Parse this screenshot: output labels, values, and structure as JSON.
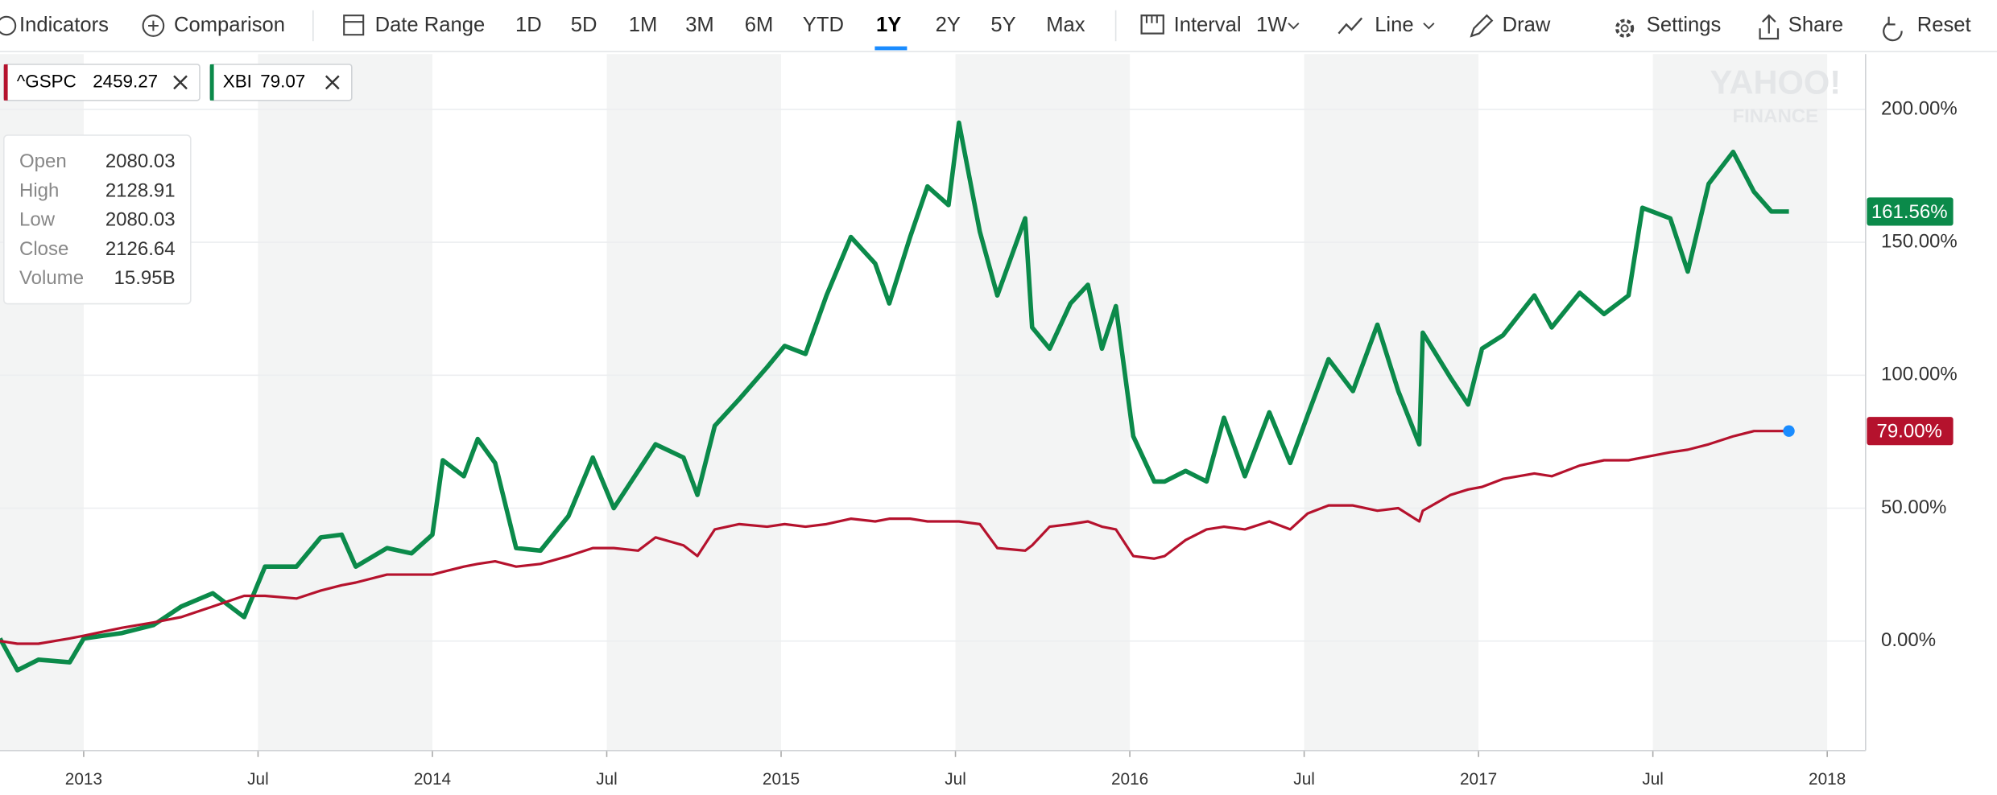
{
  "toolbar": {
    "items": [
      "Indicators",
      "Comparison",
      "Date Range",
      "1D",
      "5D",
      "1M",
      "3M",
      "6M",
      "YTD",
      "1Y",
      "2Y",
      "5Y",
      "Max",
      "Interval",
      "1W",
      "Line",
      "Draw",
      "Settings",
      "Share",
      "Reset"
    ],
    "active": "1Y"
  },
  "legend_chips": [
    {
      "symbol": "^GSPC",
      "price": "2459.27"
    },
    {
      "symbol": "XBI",
      "price": "79.07"
    }
  ],
  "tooltip": {
    "labels": [
      "Open",
      "High",
      "Low",
      "Close",
      "Volume"
    ],
    "values": [
      "2080.03",
      "2128.91",
      "2080.03",
      "2126.64",
      "15.95B"
    ]
  },
  "watermark": [
    "YAHOO!",
    "FINANCE"
  ],
  "chart_data": {
    "type": "line",
    "x": [
      2012.76,
      2012.81,
      2012.87,
      2012.96,
      2013.0,
      2013.11,
      2013.2,
      2013.28,
      2013.37,
      2013.46,
      2013.52,
      2013.61,
      2013.68,
      2013.74,
      2013.78,
      2013.87,
      2013.94,
      2014.0,
      2014.03,
      2014.09,
      2014.13,
      2014.18,
      2014.24,
      2014.31,
      2014.39,
      2014.46,
      2014.52,
      2014.59,
      2014.64,
      2014.72,
      2014.76,
      2014.81,
      2014.88,
      2014.96,
      2015.01,
      2015.07,
      2015.13,
      2015.2,
      2015.27,
      2015.31,
      2015.37,
      2015.42,
      2015.48,
      2015.51,
      2015.57,
      2015.62,
      2015.7,
      2015.72,
      2015.77,
      2015.83,
      2015.88,
      2015.92,
      2015.96,
      2016.01,
      2016.07,
      2016.1,
      2016.16,
      2016.22,
      2016.27,
      2016.33,
      2016.4,
      2016.46,
      2016.51,
      2016.57,
      2016.64,
      2016.71,
      2016.77,
      2016.83,
      2016.84,
      2016.92,
      2016.97,
      2017.01,
      2017.07,
      2017.16,
      2017.21,
      2017.29,
      2017.36,
      2017.43,
      2017.47,
      2017.55,
      2017.6,
      2017.66,
      2017.73,
      2017.79,
      2017.84,
      2017.89
    ],
    "series": [
      {
        "name": "XBI",
        "color": "#0b8a4a",
        "values": [
          1,
          -11,
          -7,
          -8,
          1,
          3,
          6,
          13,
          18,
          9,
          28,
          28,
          39,
          40,
          28,
          35,
          33,
          40,
          68,
          62,
          76,
          67,
          35,
          34,
          47,
          69,
          50,
          64,
          74,
          69,
          55,
          81,
          91,
          103,
          111,
          108,
          130,
          152,
          142,
          127,
          152,
          171,
          164,
          195,
          154,
          130,
          159,
          118,
          110,
          127,
          134,
          110,
          126,
          77,
          60,
          60,
          64,
          60,
          84,
          62,
          86,
          67,
          85,
          106,
          94,
          119,
          94,
          74,
          116,
          99,
          89,
          110,
          115,
          130,
          118,
          131,
          123,
          130,
          163,
          159,
          139,
          172,
          184,
          169,
          161.56,
          161.56
        ],
        "end_label": {
          "value": 161.56,
          "label": "161.56%"
        }
      },
      {
        "name": "^GSPC",
        "color": "#b5122d",
        "values": [
          0,
          -1,
          -1,
          1,
          2,
          5,
          7,
          9,
          13,
          17,
          17,
          16,
          19,
          21,
          22,
          25,
          25,
          25,
          26,
          28,
          29,
          30,
          28,
          29,
          32,
          35,
          35,
          34,
          39,
          36,
          32,
          42,
          44,
          43,
          44,
          43,
          44,
          46,
          45,
          46,
          46,
          45,
          45,
          45,
          44,
          35,
          34,
          36,
          43,
          44,
          45,
          43,
          42,
          32,
          31,
          32,
          38,
          42,
          43,
          42,
          45,
          42,
          48,
          51,
          51,
          49,
          50,
          45,
          49,
          55,
          57,
          58,
          61,
          63,
          62,
          66,
          68,
          68,
          69,
          71,
          72,
          74,
          77,
          79,
          79,
          79
        ],
        "end_label": {
          "value": 79,
          "label": "79.00%"
        }
      }
    ],
    "xlim": [
      2012.76,
      2018.11
    ],
    "xticks": [
      {
        "value": 2013,
        "label": "2013"
      },
      {
        "value": 2013.5,
        "label": "Jul"
      },
      {
        "value": 2014,
        "label": "2014"
      },
      {
        "value": 2014.5,
        "label": "Jul"
      },
      {
        "value": 2015,
        "label": "2015"
      },
      {
        "value": 2015.5,
        "label": "Jul"
      },
      {
        "value": 2016,
        "label": "2016"
      },
      {
        "value": 2016.5,
        "label": "Jul"
      },
      {
        "value": 2017,
        "label": "2017"
      },
      {
        "value": 2017.5,
        "label": "Jul"
      },
      {
        "value": 2018,
        "label": "2018"
      }
    ],
    "ylim": [
      -41.2,
      220.8
    ],
    "yticks": [
      {
        "value": 0,
        "label": "0.00%"
      },
      {
        "value": 50,
        "label": "50.00%"
      },
      {
        "value": 100,
        "label": "100.00%"
      },
      {
        "value": 150,
        "label": "150.00%"
      },
      {
        "value": 200,
        "label": "200.00%"
      }
    ],
    "grid": true,
    "band_color": "#f3f4f4"
  }
}
